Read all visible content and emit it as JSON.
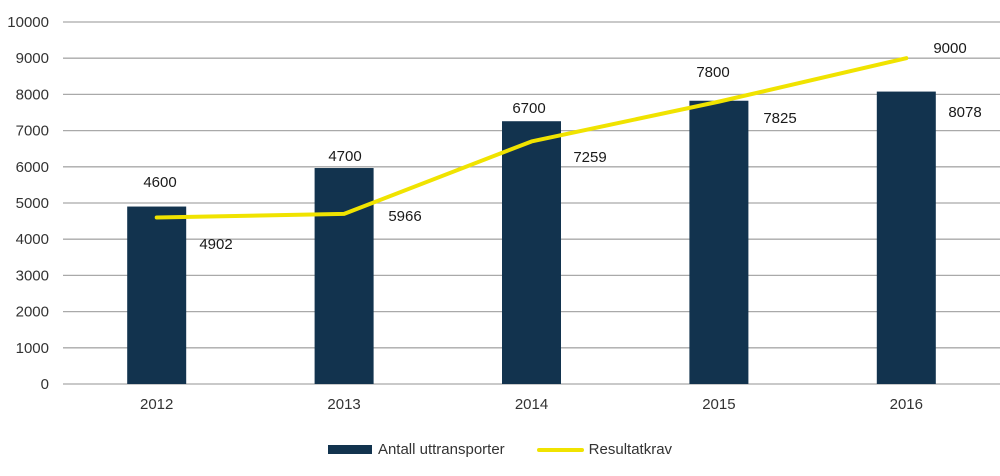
{
  "chart_data": {
    "type": "bar",
    "subtype": "bar+line-combo",
    "title": "",
    "xlabel": "",
    "ylabel": "",
    "categories": [
      "2012",
      "2013",
      "2014",
      "2015",
      "2016"
    ],
    "series": [
      {
        "name": "Antall uttransporter",
        "type": "bar",
        "color": "#12334E",
        "values": [
          4902,
          5966,
          7259,
          7825,
          8078
        ],
        "data_labels": [
          "4902",
          "5966",
          "7259",
          "7825",
          "8078"
        ]
      },
      {
        "name": "Resultatkrav",
        "type": "line",
        "color": "#F0E300",
        "values": [
          4600,
          4700,
          6700,
          7800,
          9000
        ],
        "data_labels": [
          "4600",
          "4700",
          "6700",
          "7800",
          "9000"
        ]
      }
    ],
    "ylim": [
      0,
      10000
    ],
    "yticks": [
      0,
      1000,
      2000,
      3000,
      4000,
      5000,
      6000,
      7000,
      8000,
      9000,
      10000
    ],
    "grid": true,
    "gridline_color": "#A9A9A9",
    "axis_text_color": "#333333",
    "data_label_color": "#1A1A1A",
    "legend_position": "bottom"
  }
}
